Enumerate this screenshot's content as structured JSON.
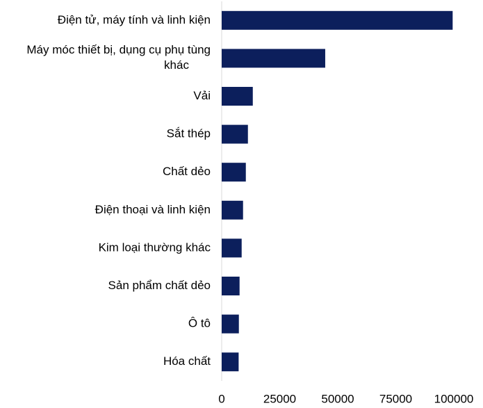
{
  "chart_data": {
    "type": "bar",
    "orientation": "horizontal",
    "categories": [
      "Điện tử, máy tính và linh kiện",
      "Máy móc thiết bị, dụng cụ phụ tùng khác",
      "Vải",
      "Sắt thép",
      "Chất dẻo",
      "Điện thoại và linh kiện",
      "Kim loại thường khác",
      "Sản phẩm chất dẻo",
      "Ô tô",
      "Hóa chất"
    ],
    "values": [
      99500,
      44600,
      13400,
      11300,
      10400,
      9200,
      8600,
      7700,
      7400,
      7300
    ],
    "color": "#0c1f5c",
    "xlim": [
      0,
      100000
    ],
    "xticks": [
      0,
      25000,
      50000,
      75000,
      100000
    ],
    "grid": false
  }
}
